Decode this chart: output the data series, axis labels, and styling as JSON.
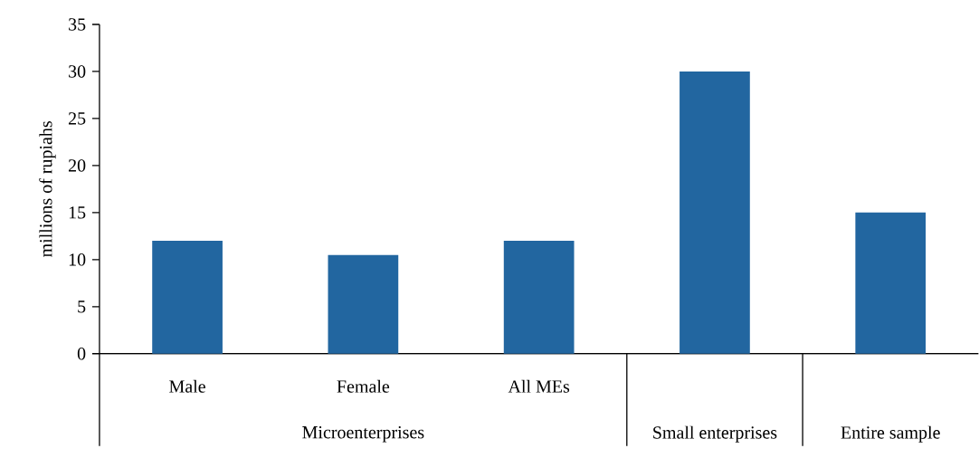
{
  "chart_data": {
    "type": "bar",
    "ylabel": "millions of rupiahs",
    "categories": [
      "Male",
      "Female",
      "All MEs",
      "Small enterprises",
      "Entire sample"
    ],
    "values": [
      12,
      10.5,
      12,
      30,
      15
    ],
    "color": "#2266a0",
    "ylim": [
      0,
      35
    ],
    "yticks": [
      0,
      5,
      10,
      15,
      20,
      25,
      30,
      35
    ],
    "annotations": [
      "Microenterprises"
    ]
  }
}
